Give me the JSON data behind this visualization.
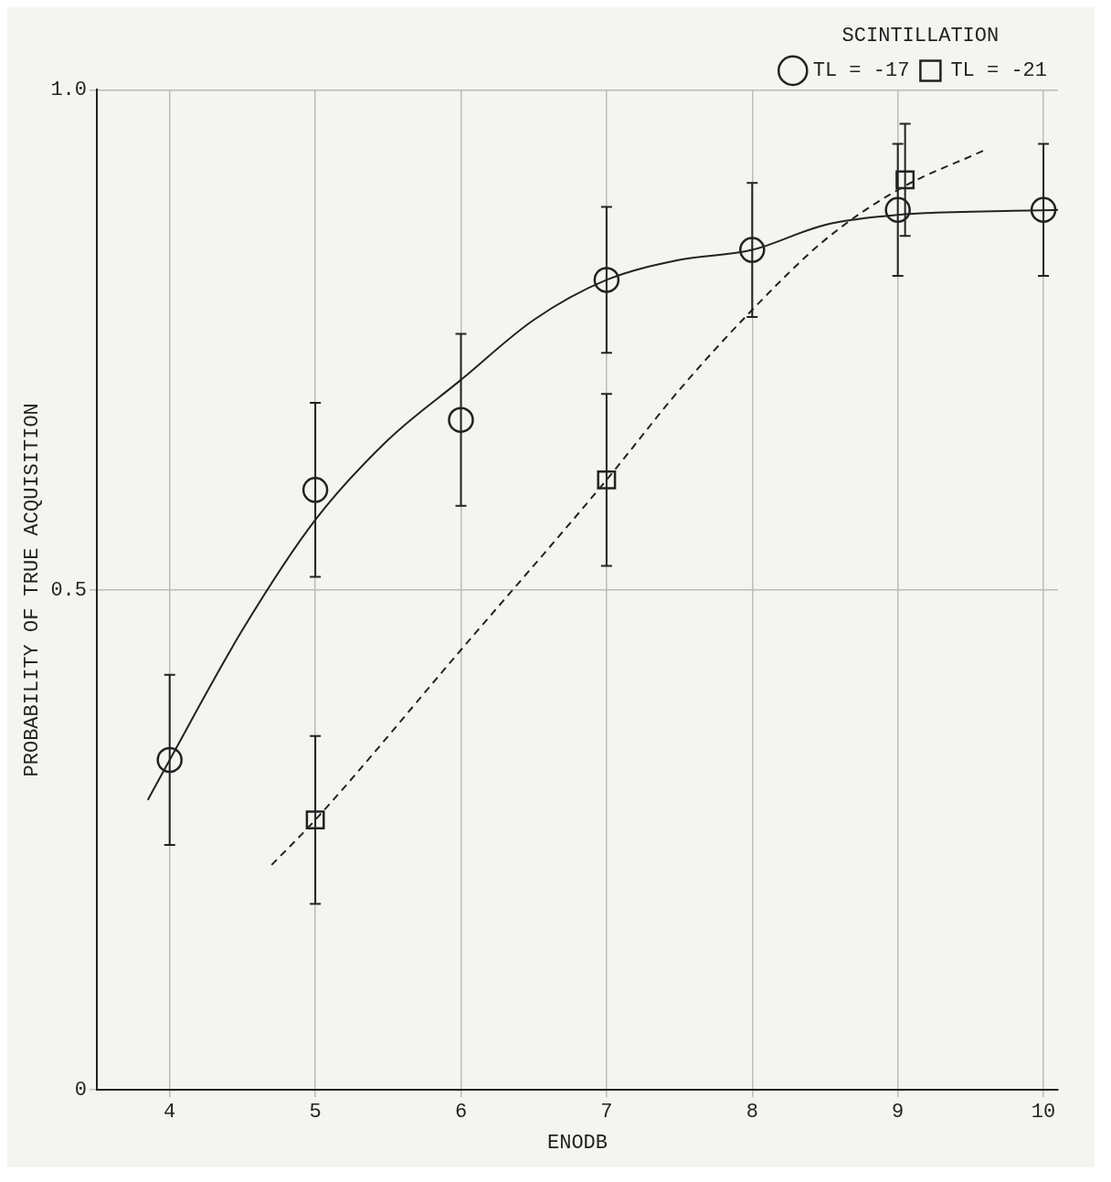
{
  "chart_data": {
    "type": "scatter",
    "xlabel": "ENODB",
    "ylabel": "PROBABILITY OF TRUE ACQUISITION",
    "legend_title": "SCINTILLATION",
    "xlim": [
      3.5,
      10.1
    ],
    "xticks": [
      4,
      5,
      6,
      7,
      8,
      9,
      10
    ],
    "ylim": [
      0,
      1
    ],
    "yticks": [
      0,
      {
        "value": 0.5,
        "label": "0.5"
      },
      {
        "value": 1,
        "label": "1.0"
      }
    ],
    "grid": true,
    "legend": "top right",
    "series": [
      {
        "name": "TL = -17",
        "type": "scatter",
        "marker": "circle",
        "color": "#222222",
        "x": [
          4,
          5,
          6,
          7,
          8,
          9,
          10
        ],
        "values": [
          0.33,
          0.6,
          0.67,
          0.81,
          0.84,
          0.88,
          0.88
        ],
        "errors": [
          0.085,
          0.087,
          0.086,
          0.073,
          0.067,
          0.066,
          0.066
        ]
      },
      {
        "name": "TL = -21",
        "type": "scatter",
        "marker": "square",
        "color": "#222222",
        "x": [
          5,
          7,
          9.05
        ],
        "values": [
          0.27,
          0.61,
          0.91
        ],
        "errors": [
          0.084,
          0.086,
          0.056
        ]
      },
      {
        "type": "line",
        "line_style": "solid",
        "marker": "none",
        "color": "#222222",
        "x": [
          3.85,
          4,
          4.5,
          5,
          5.5,
          6,
          6.5,
          7,
          7.5,
          8,
          8.5,
          9,
          10.1
        ],
        "values": [
          0.29,
          0.33,
          0.46,
          0.57,
          0.65,
          0.71,
          0.77,
          0.81,
          0.83,
          0.84,
          0.865,
          0.875,
          0.88
        ]
      },
      {
        "type": "line",
        "line_style": "dashed",
        "marker": "none",
        "color": "#222222",
        "x": [
          4.7,
          5,
          6,
          7,
          7.5,
          8,
          8.5,
          9,
          9.6
        ],
        "values": [
          0.225,
          0.27,
          0.44,
          0.61,
          0.7,
          0.78,
          0.85,
          0.9,
          0.94
        ]
      }
    ]
  }
}
